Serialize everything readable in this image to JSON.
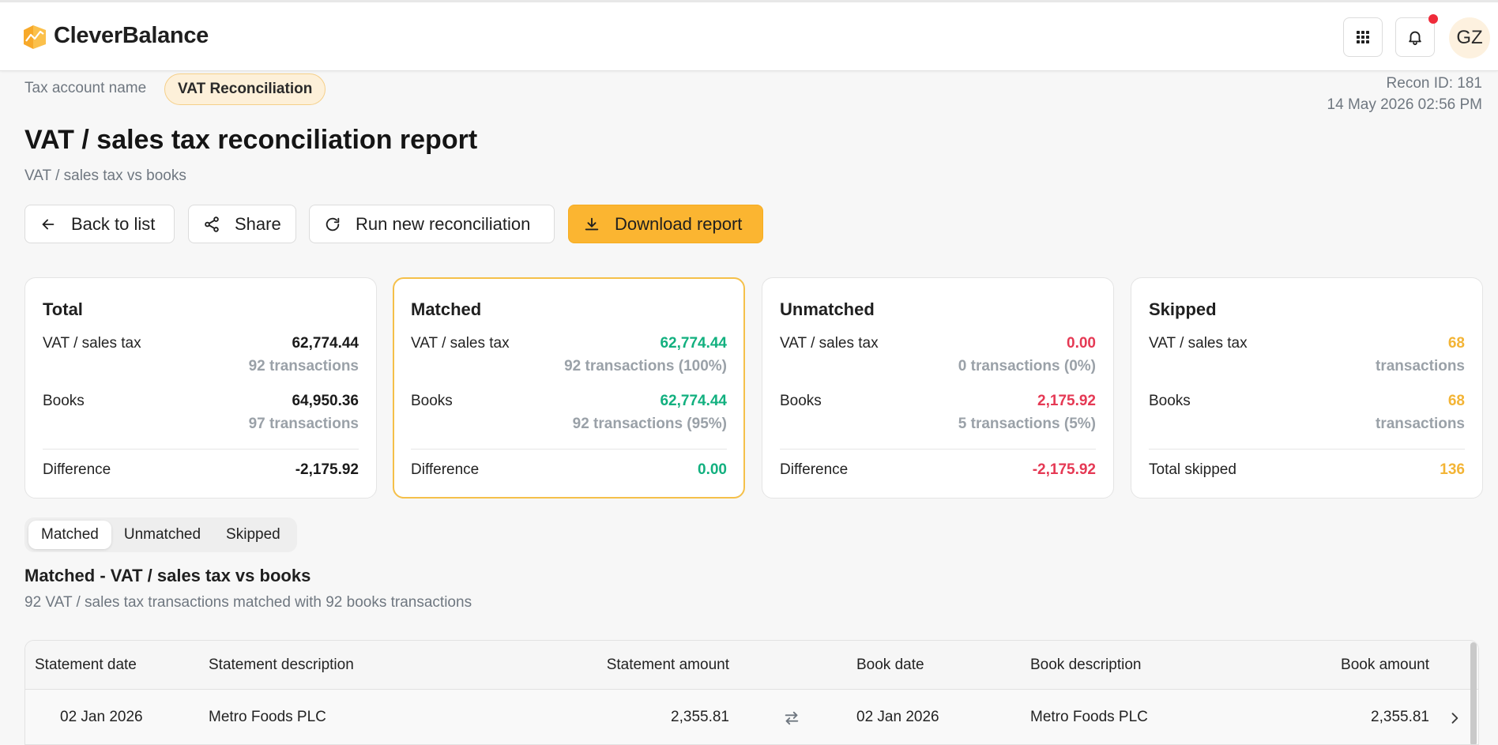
{
  "app": {
    "name": "CleverBalance"
  },
  "header": {
    "avatar_initials": "GZ",
    "has_notification": true
  },
  "account": {
    "label": "Tax account name",
    "name": "VAT Reconciliation"
  },
  "recon": {
    "id_text": "Recon ID: 181",
    "datetime": "14 May 2026 02:56 PM"
  },
  "page": {
    "title": "VAT / sales tax reconciliation report",
    "subtitle": "VAT / sales tax vs books"
  },
  "actions": {
    "back": "Back to list",
    "share": "Share",
    "run": "Run new reconciliation",
    "download": "Download report"
  },
  "cards": [
    {
      "title": "Total",
      "row1_label": "VAT / sales tax",
      "row1_value": "62,774.44",
      "row1_sub": "92 transactions",
      "row2_label": "Books",
      "row2_value": "64,950.36",
      "row2_sub": "97 transactions",
      "row3_label": "Difference",
      "row3_value": "-2,175.92"
    },
    {
      "title": "Matched",
      "row1_label": "VAT / sales tax",
      "row1_value": "62,774.44",
      "row1_sub": "92 transactions (100%)",
      "row2_label": "Books",
      "row2_value": "62,774.44",
      "row2_sub": "92 transactions (95%)",
      "row3_label": "Difference",
      "row3_value": "0.00"
    },
    {
      "title": "Unmatched",
      "row1_label": "VAT / sales tax",
      "row1_value": "0.00",
      "row1_sub": "0 transactions (0%)",
      "row2_label": "Books",
      "row2_value": "2,175.92",
      "row2_sub": "5 transactions (5%)",
      "row3_label": "Difference",
      "row3_value": "-2,175.92"
    },
    {
      "title": "Skipped",
      "row1_label": "VAT / sales tax",
      "row1_value": "68",
      "row1_sub": "transactions",
      "row2_label": "Books",
      "row2_value": "68",
      "row2_sub": "transactions",
      "row3_label": "Total skipped",
      "row3_value": "136"
    }
  ],
  "colors": {
    "accent": "#fbb531",
    "green": "#12b07f",
    "red": "#e53954",
    "amber": "#f3b435"
  },
  "tabs": [
    {
      "label": "Matched",
      "active": true
    },
    {
      "label": "Unmatched",
      "active": false
    },
    {
      "label": "Skipped",
      "active": false
    }
  ],
  "section": {
    "title": "Matched - VAT / sales tax vs books",
    "subtitle": "92 VAT / sales tax transactions matched with 92 books transactions"
  },
  "table": {
    "columns": {
      "statement_date": "Statement date",
      "statement_description": "Statement description",
      "statement_amount": "Statement amount",
      "book_date": "Book date",
      "book_description": "Book description",
      "book_amount": "Book amount"
    },
    "rows": [
      {
        "statement_date": "02 Jan 2026",
        "statement_description": "Metro Foods PLC",
        "statement_amount": "2,355.81",
        "book_date": "02 Jan 2026",
        "book_description": "Metro Foods PLC",
        "book_amount": "2,355.81"
      }
    ]
  },
  "icons": {
    "logo": "logo-icon",
    "apps": "grid-icon",
    "bell": "bell-icon",
    "back": "arrow-left-icon",
    "share": "share-icon",
    "run": "refresh-icon",
    "download": "download-icon",
    "match": "swap-arrows-icon",
    "row": "chevron-right-icon"
  }
}
